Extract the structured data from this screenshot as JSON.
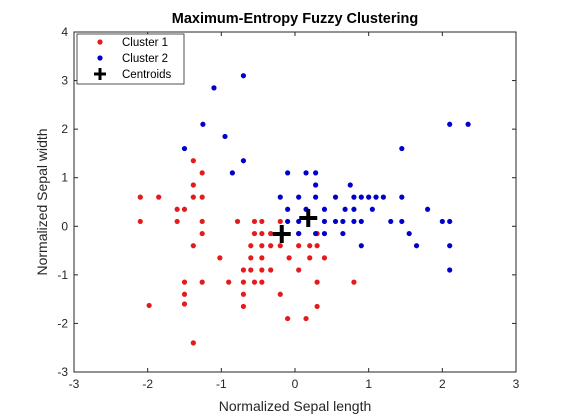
{
  "chart_data": {
    "type": "scatter",
    "title": "Maximum-Entropy Fuzzy Clustering",
    "xlabel": "Normalized Sepal length",
    "ylabel": "Normalized Sepal width",
    "xlim": [
      -3,
      3
    ],
    "ylim": [
      -3,
      4
    ],
    "xticks": [
      -3,
      -2,
      -1,
      0,
      1,
      2,
      3
    ],
    "yticks": [
      -3,
      -2,
      -1,
      0,
      1,
      2,
      3,
      4
    ],
    "grid": false,
    "legend_position": "top-left",
    "series": [
      {
        "name": "Cluster 1",
        "color": "#e41a1c",
        "marker": "dot",
        "points": [
          [
            -2.1,
            0.6
          ],
          [
            -2.1,
            0.1
          ],
          [
            -1.85,
            0.6
          ],
          [
            -1.98,
            -1.63
          ],
          [
            -1.6,
            0.35
          ],
          [
            -1.6,
            0.1
          ],
          [
            -1.5,
            0.35
          ],
          [
            -1.38,
            1.35
          ],
          [
            -1.38,
            0.85
          ],
          [
            -1.38,
            0.6
          ],
          [
            -1.38,
            -0.4
          ],
          [
            -1.38,
            -2.4
          ],
          [
            -1.26,
            1.1
          ],
          [
            -1.26,
            0.6
          ],
          [
            -1.26,
            0.1
          ],
          [
            -1.26,
            -0.15
          ],
          [
            -1.26,
            -1.15
          ],
          [
            -1.5,
            -1.15
          ],
          [
            -1.5,
            -1.4
          ],
          [
            -1.5,
            -1.6
          ],
          [
            -1.02,
            -0.65
          ],
          [
            -0.9,
            -1.15
          ],
          [
            -0.78,
            0.1
          ],
          [
            -0.7,
            -0.9
          ],
          [
            -0.7,
            -1.15
          ],
          [
            -0.7,
            -1.4
          ],
          [
            -0.7,
            -1.65
          ],
          [
            -0.6,
            -0.4
          ],
          [
            -0.6,
            -0.65
          ],
          [
            -0.6,
            -0.9
          ],
          [
            -0.55,
            0.1
          ],
          [
            -0.55,
            -0.15
          ],
          [
            -0.55,
            -1.15
          ],
          [
            -0.45,
            0.1
          ],
          [
            -0.45,
            -0.15
          ],
          [
            -0.45,
            -0.4
          ],
          [
            -0.45,
            -0.65
          ],
          [
            -0.45,
            -0.9
          ],
          [
            -0.45,
            -1.15
          ],
          [
            -0.33,
            -0.15
          ],
          [
            -0.33,
            -0.4
          ],
          [
            -0.33,
            -0.9
          ],
          [
            -0.2,
            0.1
          ],
          [
            -0.2,
            -0.4
          ],
          [
            -0.2,
            -1.4
          ],
          [
            -0.08,
            -0.65
          ],
          [
            -0.1,
            -1.9
          ],
          [
            0.05,
            -0.15
          ],
          [
            0.05,
            -0.4
          ],
          [
            0.05,
            -0.9
          ],
          [
            0.15,
            -1.9
          ],
          [
            0.2,
            -0.4
          ],
          [
            0.2,
            -0.65
          ],
          [
            0.3,
            -0.15
          ],
          [
            0.3,
            -0.4
          ],
          [
            0.3,
            -1.15
          ],
          [
            0.3,
            -1.65
          ],
          [
            0.4,
            -0.65
          ],
          [
            0.8,
            -1.15
          ]
        ]
      },
      {
        "name": "Cluster 2",
        "color": "#0000cc",
        "marker": "dot",
        "points": [
          [
            -1.1,
            2.85
          ],
          [
            -0.7,
            3.1
          ],
          [
            -1.25,
            2.1
          ],
          [
            -0.95,
            1.85
          ],
          [
            -1.5,
            1.6
          ],
          [
            -0.7,
            1.35
          ],
          [
            -0.85,
            1.1
          ],
          [
            -0.1,
            1.1
          ],
          [
            -0.2,
            0.6
          ],
          [
            -0.1,
            0.35
          ],
          [
            -0.1,
            0.1
          ],
          [
            0.05,
            0.6
          ],
          [
            0.05,
            0.1
          ],
          [
            0.05,
            -0.15
          ],
          [
            0.15,
            1.1
          ],
          [
            0.15,
            0.35
          ],
          [
            0.28,
            1.1
          ],
          [
            0.28,
            0.85
          ],
          [
            0.28,
            0.6
          ],
          [
            0.28,
            -0.15
          ],
          [
            0.4,
            0.35
          ],
          [
            0.4,
            0.1
          ],
          [
            0.4,
            -0.15
          ],
          [
            0.55,
            0.6
          ],
          [
            0.55,
            0.1
          ],
          [
            0.65,
            0.1
          ],
          [
            0.65,
            -0.15
          ],
          [
            0.75,
            0.85
          ],
          [
            0.68,
            0.35
          ],
          [
            0.8,
            0.6
          ],
          [
            0.8,
            0.35
          ],
          [
            0.8,
            0.1
          ],
          [
            0.9,
            0.6
          ],
          [
            0.9,
            0.1
          ],
          [
            0.9,
            -0.4
          ],
          [
            1.0,
            0.6
          ],
          [
            1.05,
            0.35
          ],
          [
            1.1,
            0.6
          ],
          [
            1.2,
            0.6
          ],
          [
            1.3,
            0.1
          ],
          [
            1.45,
            0.1
          ],
          [
            1.45,
            1.6
          ],
          [
            1.45,
            0.6
          ],
          [
            1.55,
            -0.15
          ],
          [
            1.65,
            -0.4
          ],
          [
            1.8,
            0.35
          ],
          [
            2.0,
            0.1
          ],
          [
            2.1,
            0.1
          ],
          [
            2.1,
            -0.4
          ],
          [
            2.1,
            -0.9
          ],
          [
            2.1,
            2.1
          ],
          [
            2.35,
            2.1
          ]
        ]
      }
    ],
    "centroids": {
      "name": "Centroids",
      "color": "#000000",
      "marker": "plus",
      "points": [
        [
          -0.18,
          -0.16
        ],
        [
          0.18,
          0.17
        ]
      ]
    }
  }
}
